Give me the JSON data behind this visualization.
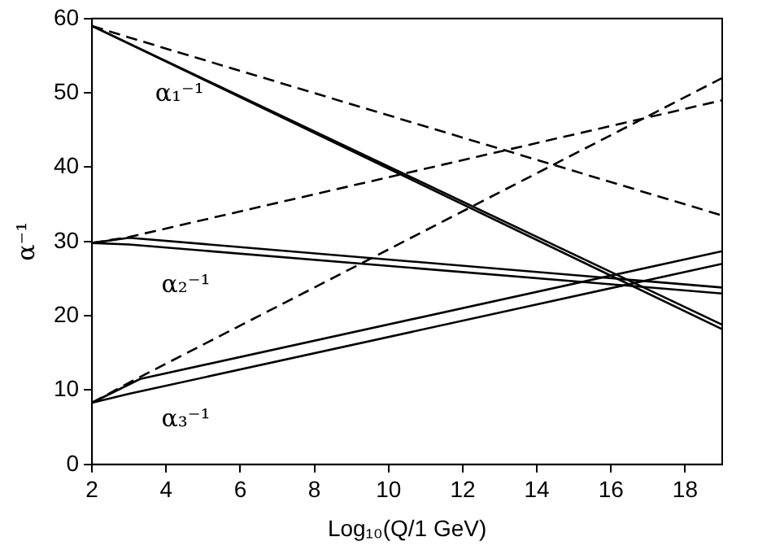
{
  "chart_data": {
    "type": "line",
    "xlabel": "Log₁₀(Q/1 GeV)",
    "ylabel": "α⁻¹",
    "xlim": [
      2,
      19
    ],
    "ylim": [
      0,
      60
    ],
    "xticks": [
      2,
      4,
      6,
      8,
      10,
      12,
      14,
      16,
      18
    ],
    "yticks": [
      0,
      10,
      20,
      30,
      40,
      50,
      60
    ],
    "grid": false,
    "legend": false,
    "marker": "none",
    "series": [
      {
        "color": "#000000",
        "line_style": "dashed",
        "x": [
          2,
          3.3,
          19
        ],
        "values": [
          59,
          57,
          33.5
        ]
      },
      {
        "color": "#000000",
        "line_style": "dashed",
        "x": [
          2,
          3,
          19
        ],
        "values": [
          29.8,
          30.6,
          49
        ]
      },
      {
        "color": "#000000",
        "line_style": "dashed",
        "x": [
          2,
          3,
          19
        ],
        "values": [
          8.3,
          11,
          52
        ]
      },
      {
        "color": "#000000",
        "line_style": "solid",
        "x": [
          2,
          19
        ],
        "values": [
          59,
          18.8
        ]
      },
      {
        "color": "#000000",
        "line_style": "solid",
        "x": [
          2,
          19
        ],
        "values": [
          59,
          18.2
        ]
      },
      {
        "color": "#000000",
        "line_style": "solid",
        "x": [
          2,
          3,
          19
        ],
        "values": [
          29.8,
          30.5,
          23.8
        ]
      },
      {
        "color": "#000000",
        "line_style": "solid",
        "x": [
          2,
          3,
          19
        ],
        "values": [
          29.8,
          29.6,
          23
        ]
      },
      {
        "color": "#000000",
        "line_style": "solid",
        "x": [
          2,
          3.3,
          19
        ],
        "values": [
          8.3,
          11.5,
          28.7
        ]
      },
      {
        "color": "#000000",
        "line_style": "solid",
        "x": [
          2,
          3,
          19
        ],
        "values": [
          8.3,
          9.5,
          27
        ]
      }
    ],
    "annotations": [
      "α₁⁻¹",
      "α₂⁻¹",
      "α₃⁻¹"
    ]
  }
}
